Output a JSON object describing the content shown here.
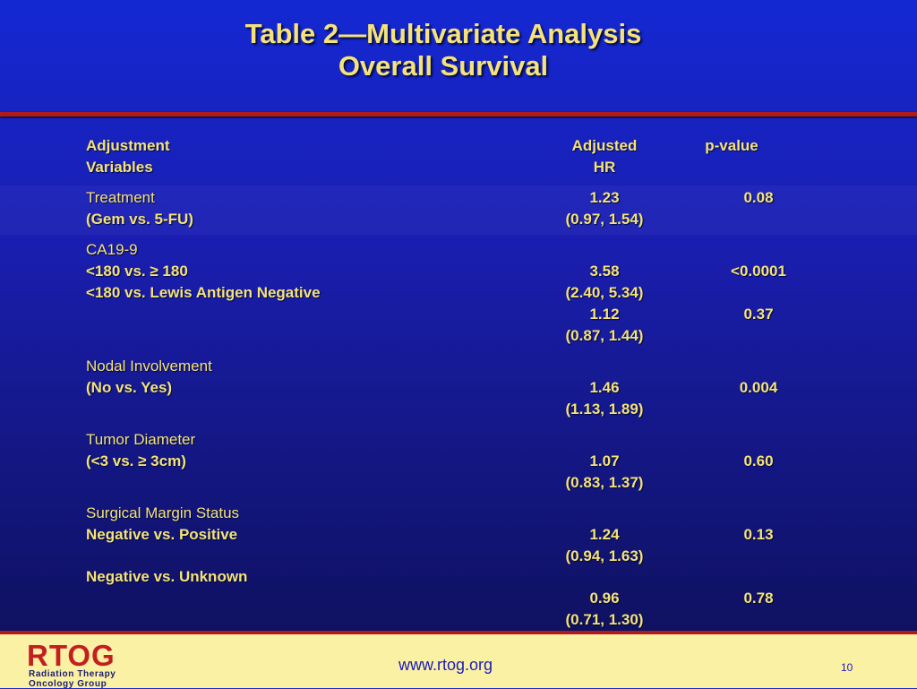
{
  "title": {
    "line1": "Table 2—Multivariate Analysis",
    "line2": "Overall Survival"
  },
  "header": {
    "adjustment": "Adjustment",
    "variables": "Variables",
    "adjusted": "Adjusted",
    "hr": "HR",
    "pvalue": "p-value"
  },
  "rows": {
    "treatment": {
      "label": "Treatment",
      "sub": "(Gem vs. 5-FU)",
      "hr": "1.23",
      "ci": "(0.97, 1.54)",
      "p": "0.08"
    },
    "ca199": {
      "label": "CA19-9",
      "sub1": "<180  vs. ≥ 180",
      "sub2": "<180  vs. Lewis Antigen Negative",
      "hr1": "3.58",
      "ci1": "(2.40, 5.34)",
      "p1": "<0.0001",
      "hr2": "1.12",
      "ci2": "(0.87, 1.44)",
      "p2": "0.37"
    },
    "nodal": {
      "label": "Nodal Involvement",
      "sub": "(No  vs. Yes)",
      "hr": "1.46",
      "ci": "(1.13, 1.89)",
      "p": "0.004"
    },
    "tumor": {
      "label": "Tumor Diameter",
      "sub": "(<3 vs. ≥  3cm)",
      "hr": "1.07",
      "ci": "(0.83, 1.37)",
      "p": "0.60"
    },
    "margin": {
      "label": "Surgical Margin Status",
      "sub1": "Negative vs. Positive",
      "hr1": "1.24",
      "ci1": "(0.94, 1.63)",
      "p1": "0.13",
      "sub2": "Negative vs. Unknown",
      "hr2": "0.96",
      "ci2": "(0.71, 1.30)",
      "p2": "0.78"
    }
  },
  "footer": {
    "logo": "RTOG",
    "logo_line1": "Radiation Therapy",
    "logo_line2": "Oncology Group",
    "url": "www.rtog.org",
    "page": "10"
  }
}
